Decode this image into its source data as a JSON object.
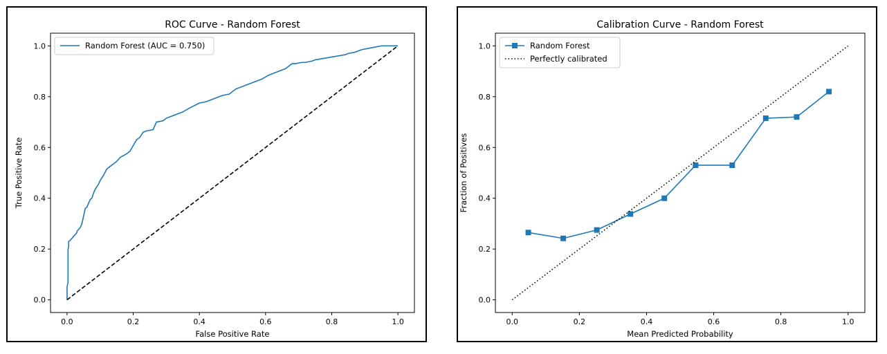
{
  "colors": {
    "series": "#1f77b4",
    "reference": "#000000"
  },
  "chart_data": [
    {
      "type": "line",
      "title": "ROC Curve - Random Forest",
      "xlabel": "False Positive Rate",
      "ylabel": "True Positive Rate",
      "xlim": [
        -0.05,
        1.05
      ],
      "ylim": [
        -0.05,
        1.05
      ],
      "xticks": [
        "0.0",
        "0.2",
        "0.4",
        "0.6",
        "0.8",
        "1.0"
      ],
      "yticks": [
        "0.0",
        "0.2",
        "0.4",
        "0.6",
        "0.8",
        "1.0"
      ],
      "grid": false,
      "legend_position": "upper-left",
      "series": [
        {
          "name": "Random Forest (AUC = 0.750)",
          "style": "solid",
          "x": [
            0.0,
            0.0,
            0.003,
            0.003,
            0.005,
            0.005,
            0.01,
            0.02,
            0.03,
            0.03,
            0.04,
            0.045,
            0.05,
            0.055,
            0.06,
            0.07,
            0.075,
            0.08,
            0.085,
            0.095,
            0.1,
            0.11,
            0.12,
            0.13,
            0.14,
            0.15,
            0.16,
            0.18,
            0.19,
            0.21,
            0.22,
            0.23,
            0.24,
            0.26,
            0.27,
            0.29,
            0.3,
            0.33,
            0.35,
            0.37,
            0.4,
            0.42,
            0.44,
            0.47,
            0.49,
            0.51,
            0.54,
            0.56,
            0.59,
            0.61,
            0.63,
            0.66,
            0.68,
            0.69,
            0.71,
            0.72,
            0.74,
            0.75,
            0.84,
            0.85,
            0.87,
            0.89,
            0.91,
            0.93,
            0.95,
            0.97,
            0.99,
            1.0
          ],
          "y": [
            0.0,
            0.05,
            0.07,
            0.2,
            0.21,
            0.23,
            0.235,
            0.25,
            0.265,
            0.27,
            0.285,
            0.3,
            0.33,
            0.36,
            0.365,
            0.395,
            0.4,
            0.42,
            0.435,
            0.455,
            0.47,
            0.49,
            0.515,
            0.525,
            0.535,
            0.545,
            0.56,
            0.575,
            0.585,
            0.63,
            0.64,
            0.66,
            0.665,
            0.67,
            0.7,
            0.705,
            0.715,
            0.73,
            0.74,
            0.755,
            0.775,
            0.78,
            0.79,
            0.805,
            0.81,
            0.83,
            0.845,
            0.855,
            0.87,
            0.885,
            0.895,
            0.91,
            0.93,
            0.93,
            0.935,
            0.935,
            0.94,
            0.945,
            0.965,
            0.97,
            0.975,
            0.985,
            0.99,
            0.995,
            1.0,
            1.0,
            1.0,
            1.0
          ]
        },
        {
          "name": "",
          "style": "dashed",
          "x": [
            0,
            1
          ],
          "y": [
            0,
            1
          ]
        }
      ]
    },
    {
      "type": "line",
      "title": "Calibration Curve - Random Forest",
      "xlabel": "Mean Predicted Probability",
      "ylabel": "Fraction of Positives",
      "xlim": [
        -0.05,
        1.05
      ],
      "ylim": [
        -0.05,
        1.05
      ],
      "xticks": [
        "0.0",
        "0.2",
        "0.4",
        "0.6",
        "0.8",
        "1.0"
      ],
      "yticks": [
        "0.0",
        "0.2",
        "0.4",
        "0.6",
        "0.8",
        "1.0"
      ],
      "grid": false,
      "legend_position": "upper-left",
      "series": [
        {
          "name": "Random Forest",
          "style": "solid-square-markers",
          "x": [
            0.048,
            0.152,
            0.252,
            0.352,
            0.453,
            0.546,
            0.655,
            0.755,
            0.847,
            0.943
          ],
          "y": [
            0.265,
            0.242,
            0.275,
            0.338,
            0.4,
            0.53,
            0.53,
            0.715,
            0.72,
            0.82
          ]
        },
        {
          "name": "Perfectly calibrated",
          "style": "dotted",
          "x": [
            0,
            1
          ],
          "y": [
            0,
            1
          ]
        }
      ]
    }
  ]
}
